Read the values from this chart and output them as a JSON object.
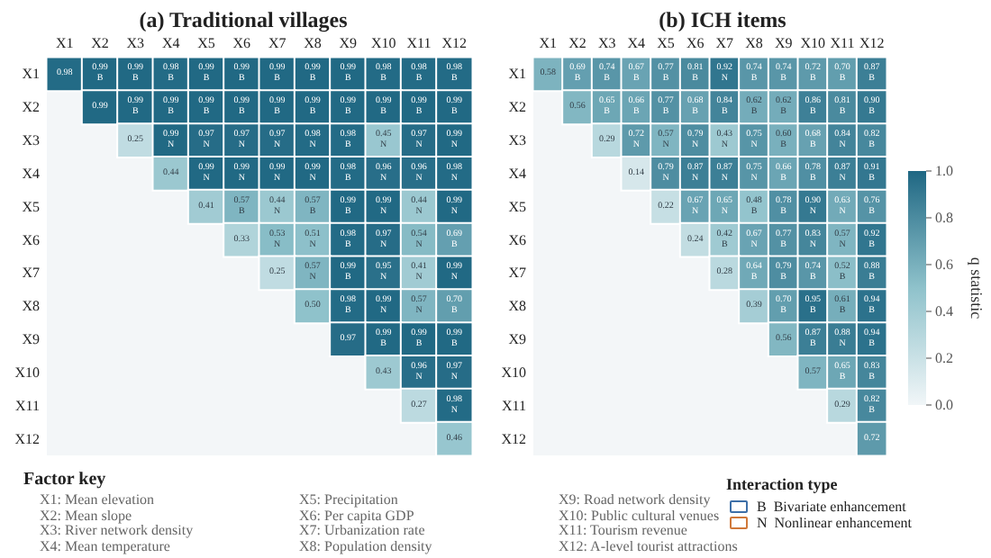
{
  "chart_data": [
    {
      "type": "heatmap",
      "title": "(a) Traditional villages",
      "categories": [
        "X1",
        "X2",
        "X3",
        "X4",
        "X5",
        "X6",
        "X7",
        "X8",
        "X9",
        "X10",
        "X11",
        "X12"
      ],
      "y_categories": [
        "X1",
        "X2",
        "X3",
        "X4",
        "X5",
        "X6",
        "X7",
        "X8",
        "X9",
        "X10",
        "X11",
        "X12"
      ],
      "cells": [
        [
          0.98,
          0.99,
          0.99,
          0.98,
          0.99,
          0.99,
          0.99,
          0.99,
          0.99,
          0.98,
          0.98,
          0.98
        ],
        [
          null,
          0.99,
          0.99,
          0.99,
          0.99,
          0.99,
          0.99,
          0.99,
          0.99,
          0.99,
          0.99,
          0.99
        ],
        [
          null,
          null,
          0.25,
          0.99,
          0.97,
          0.97,
          0.97,
          0.98,
          0.98,
          0.45,
          0.97,
          0.99
        ],
        [
          null,
          null,
          null,
          0.44,
          0.99,
          0.99,
          0.99,
          0.99,
          0.98,
          0.96,
          0.96,
          0.98
        ],
        [
          null,
          null,
          null,
          null,
          0.41,
          0.57,
          0.44,
          0.57,
          0.99,
          0.99,
          0.44,
          0.99
        ],
        [
          null,
          null,
          null,
          null,
          null,
          0.33,
          0.53,
          0.51,
          0.98,
          0.97,
          0.54,
          0.69
        ],
        [
          null,
          null,
          null,
          null,
          null,
          null,
          0.25,
          0.57,
          0.99,
          0.95,
          0.41,
          0.99
        ],
        [
          null,
          null,
          null,
          null,
          null,
          null,
          null,
          0.5,
          0.98,
          0.99,
          0.57,
          0.7
        ],
        [
          null,
          null,
          null,
          null,
          null,
          null,
          null,
          null,
          0.97,
          0.99,
          0.99,
          0.99
        ],
        [
          null,
          null,
          null,
          null,
          null,
          null,
          null,
          null,
          null,
          0.43,
          0.96,
          0.97
        ],
        [
          null,
          null,
          null,
          null,
          null,
          null,
          null,
          null,
          null,
          null,
          0.27,
          0.98
        ],
        [
          null,
          null,
          null,
          null,
          null,
          null,
          null,
          null,
          null,
          null,
          null,
          0.46
        ]
      ],
      "cell_labels": [
        [
          "0.98",
          "0.99\nB",
          "0.99\nB",
          "0.98\nB",
          "0.99\nB",
          "0.99\nB",
          "0.99\nB",
          "0.99\nB",
          "0.99\nB",
          "0.98\nB",
          "0.98\nB",
          "0.98\nB"
        ],
        [
          null,
          "0.99",
          "0.99\nB",
          "0.99\nB",
          "0.99\nB",
          "0.99\nB",
          "0.99\nB",
          "0.99\nB",
          "0.99\nB",
          "0.99\nB",
          "0.99\nB",
          "0.99\nB"
        ],
        [
          null,
          null,
          "0.25",
          "0.99\nN",
          "0.97\nN",
          "0.97\nN",
          "0.97\nN",
          "0.98\nN",
          "0.98\nB",
          "0.45\nN",
          "0.97\nN",
          "0.99\nN"
        ],
        [
          null,
          null,
          null,
          "0.44",
          "0.99\nN",
          "0.99\nN",
          "0.99\nN",
          "0.99\nN",
          "0.98\nB",
          "0.96\nN",
          "0.96\nN",
          "0.98\nN"
        ],
        [
          null,
          null,
          null,
          null,
          "0.41",
          "0.57\nB",
          "0.44\nN",
          "0.57\nB",
          "0.99\nB",
          "0.99\nN",
          "0.44\nN",
          "0.99\nN"
        ],
        [
          null,
          null,
          null,
          null,
          null,
          "0.33",
          "0.53\nN",
          "0.51\nN",
          "0.98\nB",
          "0.97\nN",
          "0.54\nN",
          "0.69\nB"
        ],
        [
          null,
          null,
          null,
          null,
          null,
          null,
          "0.25",
          "0.57\nN",
          "0.99\nB",
          "0.95\nN",
          "0.41\nN",
          "0.99\nN"
        ],
        [
          null,
          null,
          null,
          null,
          null,
          null,
          null,
          "0.50",
          "0.98\nB",
          "0.99\nN",
          "0.57\nN",
          "0.70\nB"
        ],
        [
          null,
          null,
          null,
          null,
          null,
          null,
          null,
          null,
          "0.97",
          "0.99\nB",
          "0.99\nB",
          "0.99\nB"
        ],
        [
          null,
          null,
          null,
          null,
          null,
          null,
          null,
          null,
          null,
          "0.43",
          "0.96\nN",
          "0.97\nN"
        ],
        [
          null,
          null,
          null,
          null,
          null,
          null,
          null,
          null,
          null,
          null,
          "0.27",
          "0.98\nN"
        ],
        [
          null,
          null,
          null,
          null,
          null,
          null,
          null,
          null,
          null,
          null,
          null,
          "0.46"
        ]
      ],
      "annotations": [
        "Factor key",
        "X1: Mean elevation",
        "X2: Mean slope",
        "X3: River network density",
        "X4: Mean temperature",
        "X5: Precipitation",
        "X6: Per capita GDP",
        "X7: Urbanization rate",
        "X8: Population density",
        "X9: Road network density",
        "X10: Public cultural venues",
        "X11: Tourism revenue",
        "X12: A-level tourist attractions"
      ]
    },
    {
      "type": "heatmap",
      "title": "(b) ICH items",
      "categories": [
        "X1",
        "X2",
        "X3",
        "X4",
        "X5",
        "X6",
        "X7",
        "X8",
        "X9",
        "X10",
        "X11",
        "X12"
      ],
      "y_categories": [
        "X1",
        "X2",
        "X3",
        "X4",
        "X5",
        "X6",
        "X7",
        "X8",
        "X9",
        "X10",
        "X11",
        "X12"
      ],
      "clim": [
        0,
        1
      ],
      "cticks": [
        {
          "value": 0,
          "label": "0.0"
        },
        0.2,
        0.4,
        0.6,
        0.8,
        {
          "value": 1,
          "label": "1.0"
        }
      ],
      "clabel": "q statistic",
      "cells": [
        [
          0.58,
          0.69,
          0.74,
          0.67,
          0.77,
          0.81,
          0.92,
          0.74,
          0.74,
          0.72,
          0.7,
          0.87
        ],
        [
          null,
          0.56,
          0.65,
          0.66,
          0.77,
          0.68,
          0.84,
          0.62,
          0.62,
          0.86,
          0.81,
          0.9
        ],
        [
          null,
          null,
          0.29,
          0.72,
          0.57,
          0.79,
          0.43,
          0.75,
          0.6,
          0.68,
          0.84,
          0.82
        ],
        [
          null,
          null,
          null,
          0.14,
          0.79,
          0.87,
          0.87,
          0.75,
          0.66,
          0.78,
          0.87,
          0.91
        ],
        [
          null,
          null,
          null,
          null,
          0.22,
          0.67,
          0.65,
          0.48,
          0.78,
          0.9,
          0.63,
          0.76
        ],
        [
          null,
          null,
          null,
          null,
          null,
          0.24,
          0.42,
          0.67,
          0.77,
          0.83,
          0.57,
          0.92
        ],
        [
          null,
          null,
          null,
          null,
          null,
          null,
          0.28,
          0.64,
          0.79,
          0.74,
          0.52,
          0.88
        ],
        [
          null,
          null,
          null,
          null,
          null,
          null,
          null,
          0.39,
          0.7,
          0.95,
          0.61,
          0.94
        ],
        [
          null,
          null,
          null,
          null,
          null,
          null,
          null,
          null,
          0.56,
          0.87,
          0.88,
          0.94
        ],
        [
          null,
          null,
          null,
          null,
          null,
          null,
          null,
          null,
          null,
          0.57,
          0.65,
          0.83
        ],
        [
          null,
          null,
          null,
          null,
          null,
          null,
          null,
          null,
          null,
          null,
          0.29,
          0.82
        ],
        [
          null,
          null,
          null,
          null,
          null,
          null,
          null,
          null,
          null,
          null,
          null,
          0.72
        ]
      ],
      "cell_labels": [
        [
          "0.58",
          "0.69\nB",
          "0.74\nB",
          "0.67\nB",
          "0.77\nB",
          "0.81\nB",
          "0.92\nN",
          "0.74\nB",
          "0.74\nB",
          "0.72\nB",
          "0.70\nB",
          "0.87\nB"
        ],
        [
          null,
          "0.56",
          "0.65\nB",
          "0.66\nB",
          "0.77\nB",
          "0.68\nB",
          "0.84\nB",
          "0.62\nB",
          "0.62\nB",
          "0.86\nB",
          "0.81\nB",
          "0.90\nB"
        ],
        [
          null,
          null,
          "0.29",
          "0.72\nN",
          "0.57\nN",
          "0.79\nN",
          "0.43\nN",
          "0.75\nN",
          "0.60\nB",
          "0.68\nB",
          "0.84\nN",
          "0.82\nB"
        ],
        [
          null,
          null,
          null,
          "0.14",
          "0.79\nN",
          "0.87\nN",
          "0.87\nN",
          "0.75\nN",
          "0.66\nB",
          "0.78\nB",
          "0.87\nN",
          "0.91\nB"
        ],
        [
          null,
          null,
          null,
          null,
          "0.22",
          "0.67\nN",
          "0.65\nN",
          "0.48\nB",
          "0.78\nB",
          "0.90\nN",
          "0.63\nN",
          "0.76\nB"
        ],
        [
          null,
          null,
          null,
          null,
          null,
          "0.24",
          "0.42\nB",
          "0.67\nN",
          "0.77\nB",
          "0.83\nN",
          "0.57\nN",
          "0.92\nB"
        ],
        [
          null,
          null,
          null,
          null,
          null,
          null,
          "0.28",
          "0.64\nB",
          "0.79\nB",
          "0.74\nB",
          "0.52\nB",
          "0.88\nB"
        ],
        [
          null,
          null,
          null,
          null,
          null,
          null,
          null,
          "0.39",
          "0.70\nB",
          "0.95\nB",
          "0.61\nB",
          "0.94\nB"
        ],
        [
          null,
          null,
          null,
          null,
          null,
          null,
          null,
          null,
          "0.56",
          "0.87\nB",
          "0.88\nN",
          "0.94\nB"
        ],
        [
          null,
          null,
          null,
          null,
          null,
          null,
          null,
          null,
          null,
          "0.57",
          "0.65\nB",
          "0.83\nB"
        ],
        [
          null,
          null,
          null,
          null,
          null,
          null,
          null,
          null,
          null,
          null,
          "0.29",
          "0.82\nB"
        ],
        [
          null,
          null,
          null,
          null,
          null,
          null,
          null,
          null,
          null,
          null,
          null,
          "0.72"
        ]
      ],
      "legend_title": "Interaction type",
      "annotations": [
        "B",
        "Bivariate enhancement",
        "N",
        "Nonlinear enhancement"
      ]
    }
  ]
}
